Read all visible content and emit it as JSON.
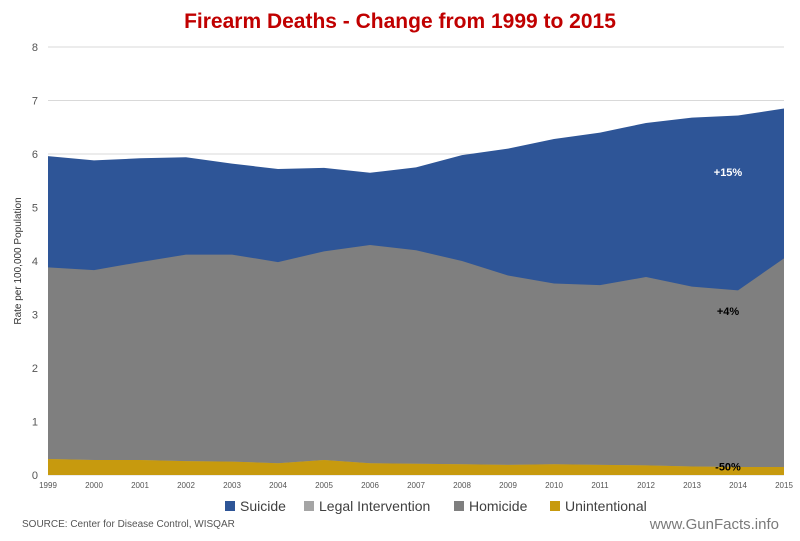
{
  "chart_data": {
    "type": "area",
    "stacked": true,
    "title": "Firearm Deaths - Change from 1999 to 2015",
    "ylabel": "Rate per 100,000 Population",
    "ylim": [
      0,
      8
    ],
    "yticks": [
      "0",
      "1",
      "2",
      "3",
      "4",
      "5",
      "6",
      "7",
      "8"
    ],
    "grid": true,
    "legend_position": "bottom",
    "x": [
      "1999",
      "2000",
      "2001",
      "2002",
      "2003",
      "2004",
      "2005",
      "2006",
      "2007",
      "2008",
      "2009",
      "2010",
      "2011",
      "2012",
      "2013",
      "2014",
      "2015"
    ],
    "cumulative": {
      "unintentional": [
        0.3,
        0.28,
        0.28,
        0.26,
        0.25,
        0.22,
        0.28,
        0.22,
        0.21,
        0.2,
        0.19,
        0.2,
        0.19,
        0.18,
        0.16,
        0.15,
        0.15
      ],
      "legal_intervention": [
        0.3,
        0.28,
        0.28,
        0.26,
        0.25,
        0.22,
        0.28,
        0.22,
        0.21,
        0.2,
        0.19,
        0.2,
        0.19,
        0.18,
        0.16,
        0.15,
        0.15
      ],
      "homicide": [
        3.88,
        3.83,
        3.98,
        4.12,
        4.12,
        3.98,
        4.18,
        4.3,
        4.2,
        4.0,
        3.73,
        3.58,
        3.55,
        3.7,
        3.52,
        3.45,
        4.05
      ],
      "suicide": [
        5.96,
        5.88,
        5.92,
        5.94,
        5.82,
        5.72,
        5.74,
        5.65,
        5.75,
        5.98,
        6.1,
        6.28,
        6.4,
        6.58,
        6.68,
        6.72,
        6.85
      ]
    },
    "series": [
      {
        "name": "Suicide",
        "color": "#2e5597"
      },
      {
        "name": "Legal Intervention",
        "color": "#a5a5a5"
      },
      {
        "name": "Homicide",
        "color": "#7f7f7f"
      },
      {
        "name": "Unintentional",
        "color": "#c79a0e"
      }
    ],
    "annotations": [
      {
        "text": "+15%",
        "x": "2014",
        "y": 5.55,
        "color": "#ffffff"
      },
      {
        "text": "+4%",
        "x": "2014",
        "y": 2.95,
        "color": "#000000"
      },
      {
        "text": "-50%",
        "x": "2014",
        "y": 0.05,
        "color": "#000000"
      }
    ]
  },
  "colors": {
    "title": "#c00000",
    "grid": "#d9d9d9"
  },
  "footer": {
    "source": "SOURCE: Center for Disease Control, WISQAR",
    "brand": "www.GunFacts.info"
  }
}
